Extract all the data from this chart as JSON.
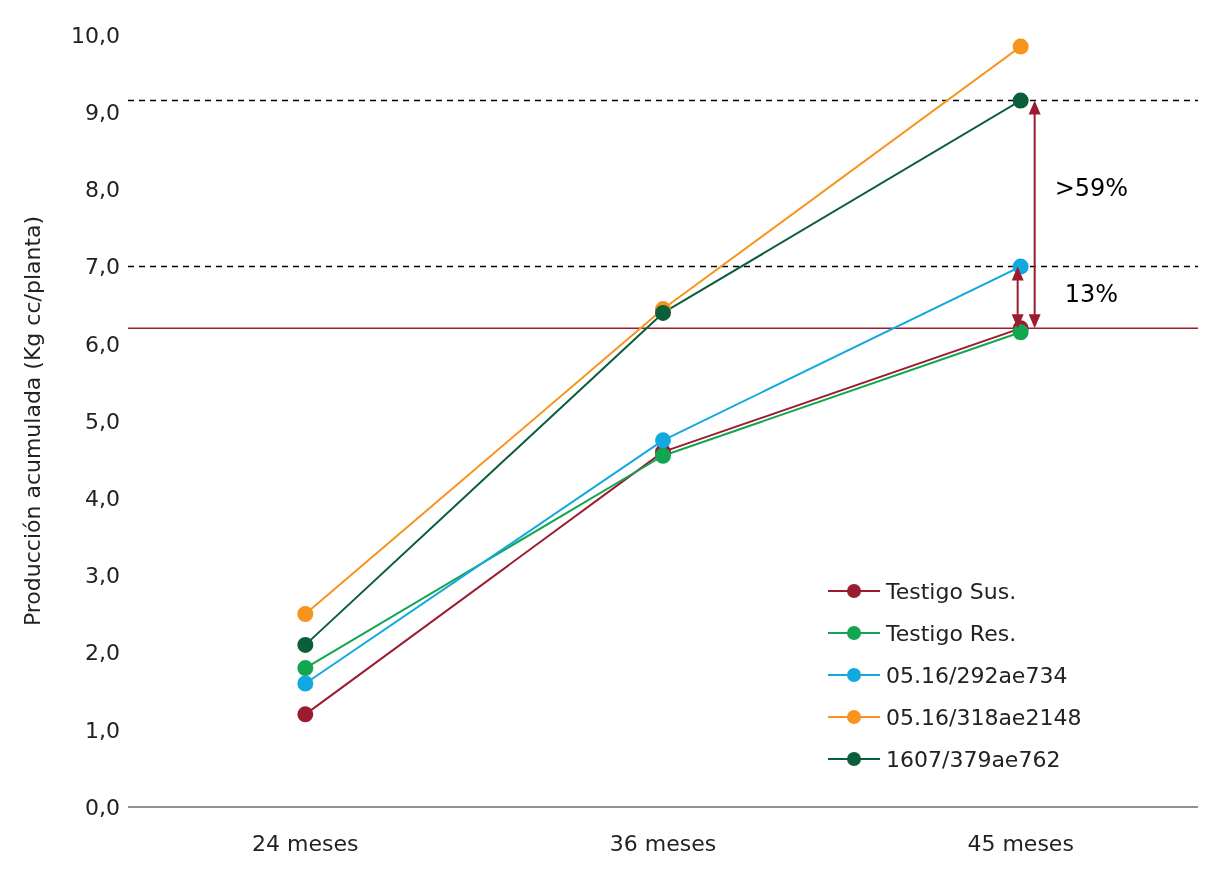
{
  "chart_data": {
    "type": "line",
    "ylabel": "Producción acumulada (Kg cc/planta)",
    "categories": [
      "24 meses",
      "36 meses",
      "45 meses"
    ],
    "series": [
      {
        "name": "Testigo Sus.",
        "color": "#9b1b30",
        "values": [
          1.2,
          4.6,
          6.2
        ]
      },
      {
        "name": "Testigo Res.",
        "color": "#12a650",
        "values": [
          1.8,
          4.55,
          6.15
        ]
      },
      {
        "name": "05.16/292ae734",
        "color": "#13a8e0",
        "values": [
          1.6,
          4.75,
          7.0
        ]
      },
      {
        "name": "05.16/318ae2148",
        "color": "#f7941d",
        "values": [
          2.5,
          6.45,
          9.85
        ]
      },
      {
        "name": "1607/379ae762",
        "color": "#0b5e3a",
        "values": [
          2.1,
          6.4,
          9.15
        ]
      }
    ],
    "ylim": [
      0,
      10
    ],
    "yticks": [
      {
        "value": 0,
        "label": "0,0"
      },
      {
        "value": 1,
        "label": "1,0"
      },
      {
        "value": 2,
        "label": "2,0"
      },
      {
        "value": 3,
        "label": "3,0"
      },
      {
        "value": 4,
        "label": "4,0"
      },
      {
        "value": 5,
        "label": "5,0"
      },
      {
        "value": 6,
        "label": "6,0"
      },
      {
        "value": 7,
        "label": "7,0"
      },
      {
        "value": 8,
        "label": "8,0"
      },
      {
        "value": 9,
        "label": "9,0"
      },
      {
        "value": 10,
        "label": "10,0"
      }
    ],
    "ref_lines": [
      {
        "axis": "y",
        "value": 9.15,
        "label": null,
        "color": "#000000",
        "line_style": "dashed"
      },
      {
        "axis": "y",
        "value": 7.0,
        "label": null,
        "color": "#000000",
        "line_style": "dashed"
      },
      {
        "axis": "y",
        "value": 6.2,
        "label": null,
        "color": "#9b1b30",
        "line_style": "solid"
      }
    ],
    "annotations": [
      ">59%",
      "13%"
    ],
    "grid": false,
    "legend": "bottom right",
    "marker": "circle",
    "line_style": "solid"
  }
}
